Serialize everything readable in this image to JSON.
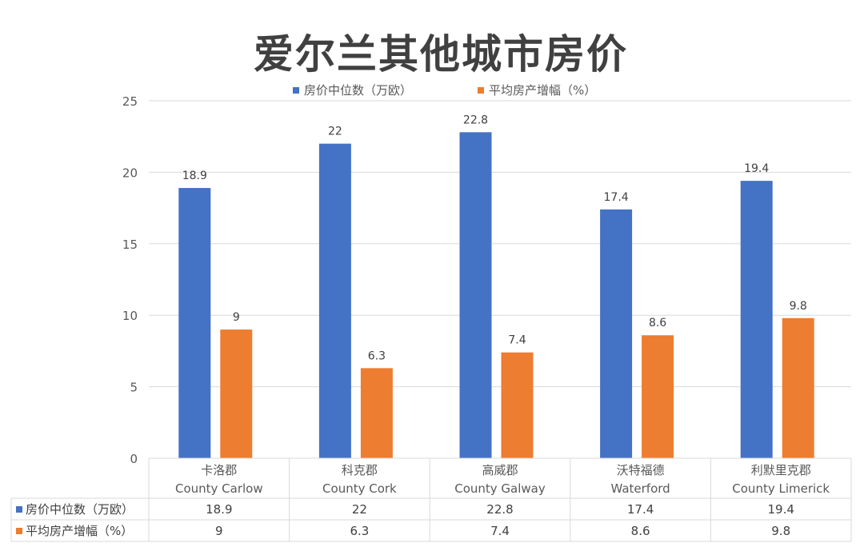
{
  "chart_data": {
    "type": "bar",
    "title": "爱尔兰其他城市房价",
    "categories": [
      [
        "卡洛郡",
        "County Carlow"
      ],
      [
        "科克郡",
        "County Cork"
      ],
      [
        "高威郡",
        "County Galway"
      ],
      [
        "沃特福德",
        "Waterford"
      ],
      [
        "利默里克郡",
        "County Limerick"
      ]
    ],
    "series": [
      {
        "name": "房价中位数（万欧）",
        "color": "#4472C4",
        "values": [
          18.9,
          22,
          22.8,
          17.4,
          19.4
        ]
      },
      {
        "name": "平均房产增幅（%）",
        "color": "#ED7D31",
        "values": [
          9,
          6.3,
          7.4,
          8.6,
          9.8
        ]
      }
    ],
    "ylim": [
      0,
      25
    ],
    "yticks": [
      0,
      5,
      10,
      15,
      20,
      25
    ],
    "legend_position": "top",
    "grid": true,
    "data_table": true
  }
}
